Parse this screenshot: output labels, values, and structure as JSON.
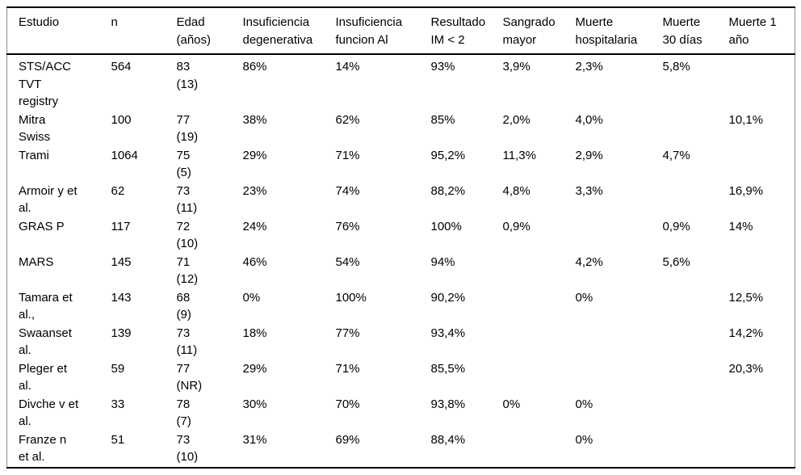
{
  "colors": {
    "rule": "#000000",
    "frame_side": "#8c8c8c",
    "text": "#000000",
    "background": "#ffffff"
  },
  "table": {
    "columns": [
      {
        "label": "Estudio"
      },
      {
        "label": "n"
      },
      {
        "label": "Edad\n(años)"
      },
      {
        "label": "Insuficiencia\ndegenerativa"
      },
      {
        "label": "Insuficiencia\nfuncion Al"
      },
      {
        "label": "Resultado\nIM < 2"
      },
      {
        "label": "Sangrado\nmayor"
      },
      {
        "label": "Muerte\nhospitalaria"
      },
      {
        "label": "Muerte\n30 días"
      },
      {
        "label": "Muerte 1\naño"
      }
    ],
    "rows": [
      [
        "STS/ACC\nTVT\nregistry",
        "564",
        "83\n(13)",
        "86%",
        "14%",
        "93%",
        "3,9%",
        "2,3%",
        "5,8%",
        ""
      ],
      [
        "Mitra\nSwiss",
        "100",
        "77\n(19)",
        "38%",
        "62%",
        "85%",
        "2,0%",
        "4,0%",
        "",
        "10,1%"
      ],
      [
        "Trami",
        "1064",
        "75\n(5)",
        "29%",
        "71%",
        "95,2%",
        "11,3%",
        "2,9%",
        "4,7%",
        ""
      ],
      [
        "Armoir y et\nal.",
        "62",
        "73\n(11)",
        "23%",
        "74%",
        "88,2%",
        "4,8%",
        "3,3%",
        "",
        "16,9%"
      ],
      [
        "GRAS P",
        "117",
        "72\n(10)",
        "24%",
        "76%",
        "100%",
        "0,9%",
        "",
        "0,9%",
        "14%"
      ],
      [
        "MARS",
        "145",
        "71\n(12)",
        "46%",
        "54%",
        "94%",
        "",
        "4,2%",
        "5,6%",
        ""
      ],
      [
        "Tamara et\nal.,",
        "143",
        "68\n(9)",
        "0%",
        "100%",
        "90,2%",
        "",
        "0%",
        "",
        "12,5%"
      ],
      [
        "Swaanset\nal.",
        "139",
        "73\n(11)",
        "18%",
        "77%",
        "93,4%",
        "",
        "",
        "",
        "14,2%"
      ],
      [
        "Pleger et\nal.",
        "59",
        "77\n(NR)",
        "29%",
        "71%",
        "85,5%",
        "",
        "",
        "",
        "20,3%"
      ],
      [
        "Divche v et\nal.",
        "33",
        "78\n(7)",
        "30%",
        "70%",
        "93,8%",
        "0%",
        "0%",
        "",
        ""
      ],
      [
        "Franze n\net al.",
        "51",
        "73\n(10)",
        "31%",
        "69%",
        "88,4%",
        "",
        "0%",
        "",
        ""
      ]
    ]
  }
}
